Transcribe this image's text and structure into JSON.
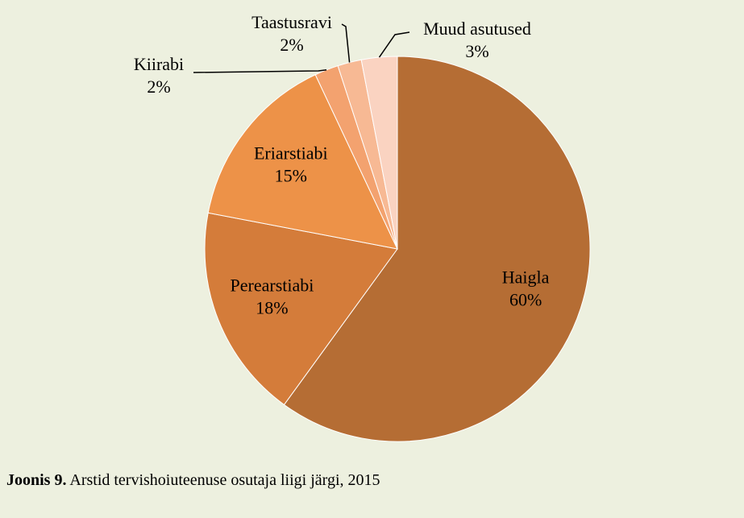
{
  "chart_data": {
    "type": "pie",
    "categories": [
      "Haigla",
      "Perearstiabi",
      "Eriarstiabi",
      "Kiirabi",
      "Taastusravi",
      "Muud asutused"
    ],
    "values": [
      60,
      18,
      15,
      2,
      2,
      3
    ],
    "value_labels": [
      "60%",
      "18%",
      "15%",
      "2%",
      "2%",
      "3%"
    ],
    "colors": [
      "#b56d34",
      "#d47c3a",
      "#ed9248",
      "#f3a26f",
      "#f7b994",
      "#fad3c1"
    ],
    "caption": {
      "label": "Joonis 9.",
      "text": "Arstid tervishoiuteenuse osutaja liigi järgi, 2015"
    }
  }
}
